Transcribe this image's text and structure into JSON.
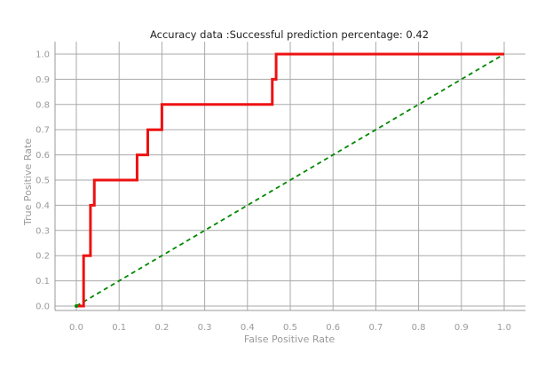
{
  "chart_data": {
    "type": "line",
    "title": "Accuracy data :Successful prediction percentage: 0.42",
    "xlabel": "False Positive Rate",
    "ylabel": "True Positive Rate",
    "xlim": [
      -0.05,
      1.05
    ],
    "ylim": [
      -0.02,
      1.05
    ],
    "x_ticks": [
      "0.0",
      "0.1",
      "0.2",
      "0.3",
      "0.4",
      "0.5",
      "0.6",
      "0.7",
      "0.8",
      "0.9",
      "1.0"
    ],
    "y_ticks": [
      "0.0",
      "0.1",
      "0.2",
      "0.3",
      "0.4",
      "0.5",
      "0.6",
      "0.7",
      "0.8",
      "0.9",
      "1.0"
    ],
    "grid": true,
    "series": [
      {
        "style": "solid",
        "color": "#ee1111",
        "x": [
          0.0,
          0.017,
          0.017,
          0.033,
          0.033,
          0.042,
          0.042,
          0.142,
          0.142,
          0.167,
          0.167,
          0.2,
          0.2,
          0.458,
          0.458,
          0.467,
          0.467,
          1.0
        ],
        "y": [
          0.0,
          0.0,
          0.2,
          0.2,
          0.4,
          0.4,
          0.5,
          0.5,
          0.6,
          0.6,
          0.7,
          0.7,
          0.8,
          0.8,
          0.9,
          0.9,
          1.0,
          1.0
        ]
      },
      {
        "style": "dashed",
        "color": "#008800",
        "x": [
          0.0,
          1.0
        ],
        "y": [
          0.0,
          1.0
        ]
      }
    ]
  }
}
